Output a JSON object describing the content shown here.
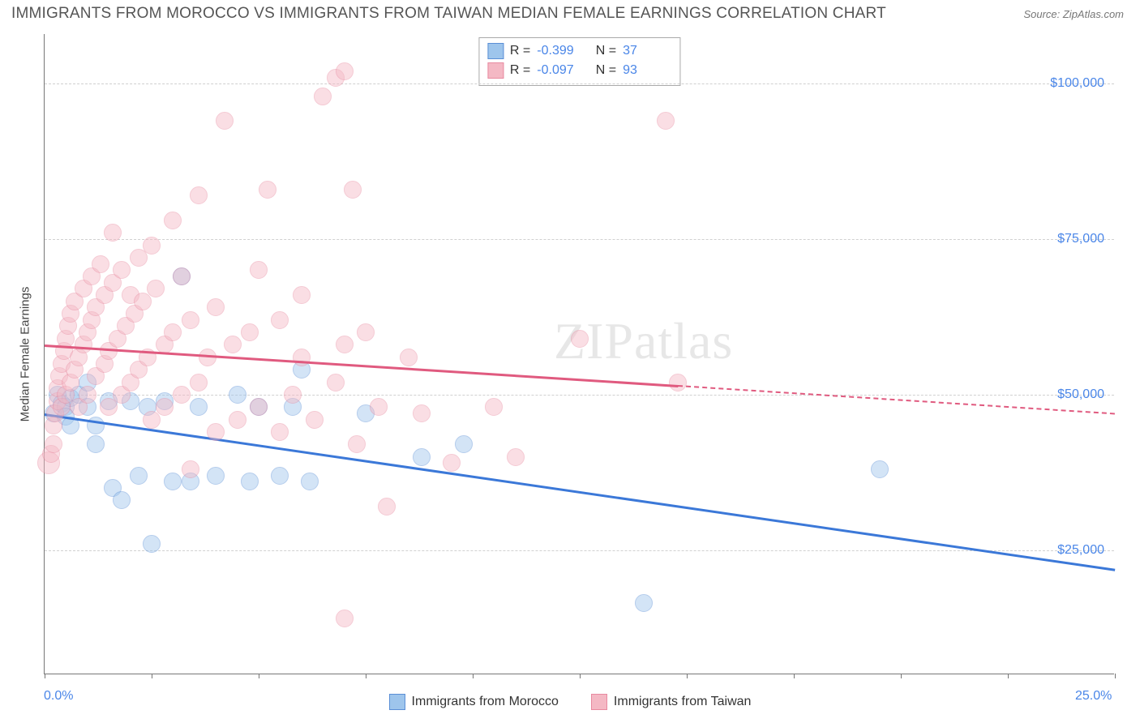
{
  "header": {
    "title": "IMMIGRANTS FROM MOROCCO VS IMMIGRANTS FROM TAIWAN MEDIAN FEMALE EARNINGS CORRELATION CHART",
    "source": "Source: ZipAtlas.com"
  },
  "watermark": "ZIPatlas",
  "chart": {
    "type": "scatter",
    "y_axis_label": "Median Female Earnings",
    "background_color": "#ffffff",
    "grid_color": "#d0d0d0",
    "axis_color": "#777777",
    "axis_label_color": "#4a86e8",
    "xlim": [
      0,
      25
    ],
    "ylim": [
      5000,
      108000
    ],
    "x_ticks": [
      0,
      2.5,
      5,
      7.5,
      10,
      12.5,
      15,
      17.5,
      20,
      22.5,
      25
    ],
    "x_start_label": "0.0%",
    "x_end_label": "25.0%",
    "y_gridlines": [
      {
        "value": 25000,
        "label": "$25,000"
      },
      {
        "value": 50000,
        "label": "$50,000"
      },
      {
        "value": 75000,
        "label": "$75,000"
      },
      {
        "value": 100000,
        "label": "$100,000"
      }
    ],
    "point_radius": 11,
    "point_opacity": 0.45,
    "series": [
      {
        "id": "morocco",
        "name": "Immigrants from Morocco",
        "fill_color": "#9ec5ec",
        "stroke_color": "#5b8fd6",
        "trend_color": "#3b78d8",
        "trend_width": 3,
        "trend_start": {
          "x": 0,
          "y": 47000
        },
        "trend_end": {
          "x": 25,
          "y": 22000
        },
        "dash_from_x": null,
        "stats": {
          "R": "-0.399",
          "N": "37"
        },
        "points": [
          {
            "x": 0.2,
            "y": 47000
          },
          {
            "x": 0.3,
            "y": 50000
          },
          {
            "x": 0.4,
            "y": 48500
          },
          {
            "x": 0.5,
            "y": 48000
          },
          {
            "x": 0.5,
            "y": 46500
          },
          {
            "x": 0.6,
            "y": 49500
          },
          {
            "x": 0.6,
            "y": 45000
          },
          {
            "x": 0.8,
            "y": 50000
          },
          {
            "x": 1.0,
            "y": 52000
          },
          {
            "x": 1.0,
            "y": 48000
          },
          {
            "x": 1.2,
            "y": 45000
          },
          {
            "x": 1.2,
            "y": 42000
          },
          {
            "x": 1.5,
            "y": 49000
          },
          {
            "x": 1.6,
            "y": 35000
          },
          {
            "x": 1.8,
            "y": 33000
          },
          {
            "x": 2.0,
            "y": 49000
          },
          {
            "x": 2.2,
            "y": 37000
          },
          {
            "x": 2.4,
            "y": 48000
          },
          {
            "x": 2.5,
            "y": 26000
          },
          {
            "x": 2.8,
            "y": 49000
          },
          {
            "x": 3.0,
            "y": 36000
          },
          {
            "x": 3.2,
            "y": 69000
          },
          {
            "x": 3.4,
            "y": 36000
          },
          {
            "x": 3.6,
            "y": 48000
          },
          {
            "x": 4.0,
            "y": 37000
          },
          {
            "x": 4.5,
            "y": 50000
          },
          {
            "x": 4.8,
            "y": 36000
          },
          {
            "x": 5.0,
            "y": 48000
          },
          {
            "x": 5.5,
            "y": 37000
          },
          {
            "x": 5.8,
            "y": 48000
          },
          {
            "x": 6.0,
            "y": 54000
          },
          {
            "x": 6.2,
            "y": 36000
          },
          {
            "x": 7.5,
            "y": 47000
          },
          {
            "x": 8.8,
            "y": 40000
          },
          {
            "x": 9.8,
            "y": 42000
          },
          {
            "x": 14.0,
            "y": 16500
          },
          {
            "x": 19.5,
            "y": 38000
          }
        ]
      },
      {
        "id": "taiwan",
        "name": "Immigrants from Taiwan",
        "fill_color": "#f4b8c4",
        "stroke_color": "#e88aa0",
        "trend_color": "#e05a7f",
        "trend_width": 2.5,
        "trend_start": {
          "x": 0,
          "y": 58000
        },
        "trend_end": {
          "x": 25,
          "y": 47000
        },
        "dash_from_x": 14.8,
        "stats": {
          "R": "-0.097",
          "N": "93"
        },
        "points": [
          {
            "x": 0.1,
            "y": 39000,
            "r": 14
          },
          {
            "x": 0.15,
            "y": 40500
          },
          {
            "x": 0.2,
            "y": 42000
          },
          {
            "x": 0.2,
            "y": 45000
          },
          {
            "x": 0.25,
            "y": 47000
          },
          {
            "x": 0.3,
            "y": 49000
          },
          {
            "x": 0.3,
            "y": 51000
          },
          {
            "x": 0.35,
            "y": 53000
          },
          {
            "x": 0.4,
            "y": 48000
          },
          {
            "x": 0.4,
            "y": 55000
          },
          {
            "x": 0.45,
            "y": 57000
          },
          {
            "x": 0.5,
            "y": 50000
          },
          {
            "x": 0.5,
            "y": 59000
          },
          {
            "x": 0.55,
            "y": 61000
          },
          {
            "x": 0.6,
            "y": 52000
          },
          {
            "x": 0.6,
            "y": 63000
          },
          {
            "x": 0.7,
            "y": 54000
          },
          {
            "x": 0.7,
            "y": 65000
          },
          {
            "x": 0.8,
            "y": 56000
          },
          {
            "x": 0.8,
            "y": 48000
          },
          {
            "x": 0.9,
            "y": 58000
          },
          {
            "x": 0.9,
            "y": 67000
          },
          {
            "x": 1.0,
            "y": 60000
          },
          {
            "x": 1.0,
            "y": 50000
          },
          {
            "x": 1.1,
            "y": 62000
          },
          {
            "x": 1.1,
            "y": 69000
          },
          {
            "x": 1.2,
            "y": 53000
          },
          {
            "x": 1.2,
            "y": 64000
          },
          {
            "x": 1.3,
            "y": 71000
          },
          {
            "x": 1.4,
            "y": 55000
          },
          {
            "x": 1.4,
            "y": 66000
          },
          {
            "x": 1.5,
            "y": 57000
          },
          {
            "x": 1.5,
            "y": 48000
          },
          {
            "x": 1.6,
            "y": 68000
          },
          {
            "x": 1.6,
            "y": 76000
          },
          {
            "x": 1.7,
            "y": 59000
          },
          {
            "x": 1.8,
            "y": 50000
          },
          {
            "x": 1.8,
            "y": 70000
          },
          {
            "x": 1.9,
            "y": 61000
          },
          {
            "x": 2.0,
            "y": 52000
          },
          {
            "x": 2.0,
            "y": 66000
          },
          {
            "x": 2.1,
            "y": 63000
          },
          {
            "x": 2.2,
            "y": 54000
          },
          {
            "x": 2.2,
            "y": 72000
          },
          {
            "x": 2.3,
            "y": 65000
          },
          {
            "x": 2.4,
            "y": 56000
          },
          {
            "x": 2.5,
            "y": 46000
          },
          {
            "x": 2.5,
            "y": 74000
          },
          {
            "x": 2.6,
            "y": 67000
          },
          {
            "x": 2.8,
            "y": 58000
          },
          {
            "x": 2.8,
            "y": 48000
          },
          {
            "x": 3.0,
            "y": 78000
          },
          {
            "x": 3.0,
            "y": 60000
          },
          {
            "x": 3.2,
            "y": 50000
          },
          {
            "x": 3.2,
            "y": 69000
          },
          {
            "x": 3.4,
            "y": 38000
          },
          {
            "x": 3.4,
            "y": 62000
          },
          {
            "x": 3.6,
            "y": 52000
          },
          {
            "x": 3.6,
            "y": 82000
          },
          {
            "x": 3.8,
            "y": 56000
          },
          {
            "x": 4.0,
            "y": 44000
          },
          {
            "x": 4.0,
            "y": 64000
          },
          {
            "x": 4.2,
            "y": 94000
          },
          {
            "x": 4.4,
            "y": 58000
          },
          {
            "x": 4.5,
            "y": 46000
          },
          {
            "x": 4.8,
            "y": 60000
          },
          {
            "x": 5.0,
            "y": 48000
          },
          {
            "x": 5.0,
            "y": 70000
          },
          {
            "x": 5.2,
            "y": 83000
          },
          {
            "x": 5.5,
            "y": 62000
          },
          {
            "x": 5.5,
            "y": 44000
          },
          {
            "x": 5.8,
            "y": 50000
          },
          {
            "x": 6.0,
            "y": 56000
          },
          {
            "x": 6.0,
            "y": 66000
          },
          {
            "x": 6.3,
            "y": 46000
          },
          {
            "x": 6.5,
            "y": 98000
          },
          {
            "x": 6.8,
            "y": 52000
          },
          {
            "x": 6.8,
            "y": 101000
          },
          {
            "x": 7.0,
            "y": 58000
          },
          {
            "x": 7.0,
            "y": 102000
          },
          {
            "x": 7.0,
            "y": 14000
          },
          {
            "x": 7.2,
            "y": 83000
          },
          {
            "x": 7.3,
            "y": 42000
          },
          {
            "x": 7.5,
            "y": 60000
          },
          {
            "x": 7.8,
            "y": 48000
          },
          {
            "x": 8.0,
            "y": 32000
          },
          {
            "x": 8.5,
            "y": 56000
          },
          {
            "x": 8.8,
            "y": 47000
          },
          {
            "x": 9.5,
            "y": 39000
          },
          {
            "x": 10.5,
            "y": 48000
          },
          {
            "x": 11.0,
            "y": 40000
          },
          {
            "x": 12.5,
            "y": 59000
          },
          {
            "x": 14.5,
            "y": 94000
          },
          {
            "x": 14.8,
            "y": 52000
          }
        ]
      }
    ],
    "legend_items": [
      {
        "series": "morocco",
        "label": "Immigrants from Morocco"
      },
      {
        "series": "taiwan",
        "label": "Immigrants from Taiwan"
      }
    ]
  }
}
